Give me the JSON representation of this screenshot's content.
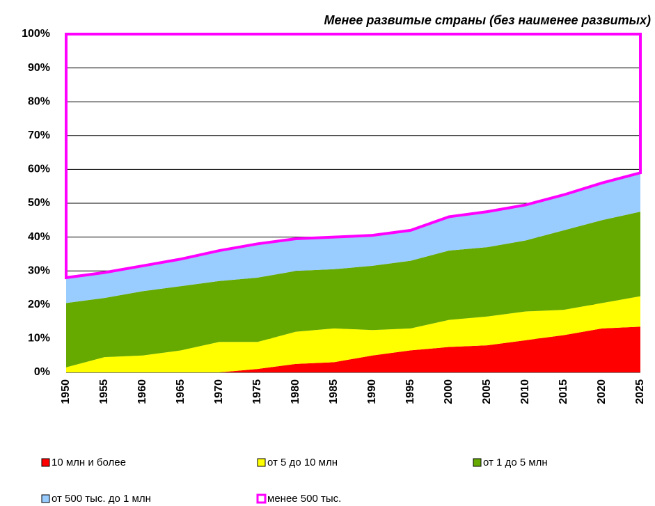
{
  "chart_data": {
    "type": "stacked_area",
    "title": "Менее развитые страны (без наименее развитых)",
    "categories": [
      "1950",
      "1955",
      "1960",
      "1965",
      "1970",
      "1975",
      "1980",
      "1985",
      "1990",
      "1995",
      "2000",
      "2005",
      "2010",
      "2015",
      "2020",
      "2025"
    ],
    "series": [
      {
        "name": "10 млн и более",
        "color": "#ff0000",
        "values": [
          0,
          0,
          0,
          0,
          0,
          1,
          2.5,
          3,
          5,
          6.5,
          7.5,
          8,
          9.5,
          11,
          13,
          13.5
        ]
      },
      {
        "name": "от 5 до 10 млн",
        "color": "#ffff00",
        "values": [
          1.5,
          4.5,
          5,
          6.5,
          9,
          8,
          9.5,
          10,
          7.5,
          6.5,
          8,
          8.5,
          8.5,
          7.5,
          7.5,
          9
        ]
      },
      {
        "name": "от 1 до 5 млн",
        "color": "#66aa00",
        "values": [
          19,
          17.5,
          19,
          19,
          18,
          19,
          18,
          17.5,
          19,
          20,
          20.5,
          20.5,
          21,
          23.5,
          24.5,
          25
        ]
      },
      {
        "name": "от 500 тыс. до 1 млн",
        "color": "#99ccff",
        "values": [
          7.5,
          7.5,
          7.5,
          8,
          9,
          10,
          9.5,
          9.5,
          9,
          9,
          10,
          10.5,
          10.5,
          10.5,
          11,
          11.5
        ]
      },
      {
        "name": "менее 500 тыс.",
        "color": "#ff00ff",
        "fill": "none",
        "values": [
          72,
          70.5,
          68.5,
          66.5,
          64,
          62,
          60.5,
          60,
          59.5,
          58,
          54,
          52.5,
          50.5,
          47.5,
          44,
          41
        ]
      }
    ],
    "ylim": [
      0,
      100
    ],
    "yticks": [
      {
        "value": 0,
        "label": "0%"
      },
      {
        "value": 10,
        "label": "10%"
      },
      {
        "value": 20,
        "label": "20%"
      },
      {
        "value": 30,
        "label": "30%"
      },
      {
        "value": 40,
        "label": "40%"
      },
      {
        "value": 50,
        "label": "50%"
      },
      {
        "value": 60,
        "label": "60%"
      },
      {
        "value": 70,
        "label": "70%"
      },
      {
        "value": 80,
        "label": "80%"
      },
      {
        "value": 90,
        "label": "90%"
      },
      {
        "value": 100,
        "label": "100%"
      }
    ],
    "grid": true
  }
}
